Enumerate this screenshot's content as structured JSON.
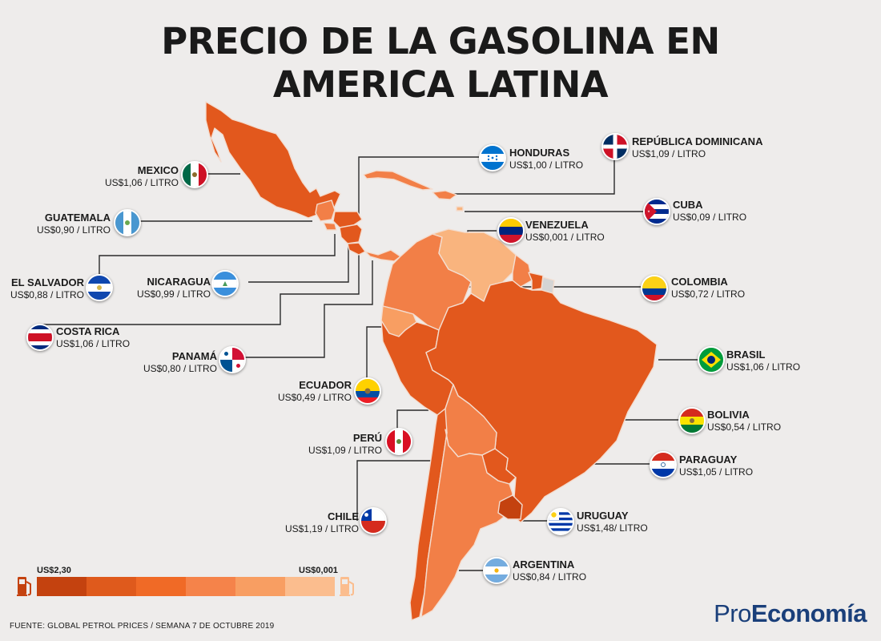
{
  "title_line1": "PRECIO DE LA GASOLINA EN",
  "title_line2": "AMERICA LATINA",
  "countries": {
    "mexico": {
      "name": "MEXICO",
      "price": "US$1,06 / LITRO",
      "value": 1.06
    },
    "guatemala": {
      "name": "GUATEMALA",
      "price": "US$0,90 / LITRO",
      "value": 0.9
    },
    "el_salvador": {
      "name": "EL SALVADOR",
      "price": "US$0,88 / LITRO",
      "value": 0.88
    },
    "nicaragua": {
      "name": "NICARAGUA",
      "price": "US$0,99 / LITRO",
      "value": 0.99
    },
    "costa_rica": {
      "name": "COSTA RICA",
      "price": "US$1,06 / LITRO",
      "value": 1.06
    },
    "panama": {
      "name": "PANAMÁ",
      "price": "US$0,80 / LITRO",
      "value": 0.8
    },
    "ecuador": {
      "name": "ECUADOR",
      "price": "US$0,49 / LITRO",
      "value": 0.49
    },
    "peru": {
      "name": "PERÚ",
      "price": "US$1,09 / LITRO",
      "value": 1.09
    },
    "chile": {
      "name": "CHILE",
      "price": "US$1,19 / LITRO",
      "value": 1.19
    },
    "honduras": {
      "name": "HONDURAS",
      "price": "US$1,00 / LITRO",
      "value": 1.0
    },
    "republica_dominicana": {
      "name": "REPÚBLICA DOMINICANA",
      "price": "US$1,09 / LITRO",
      "value": 1.09
    },
    "cuba": {
      "name": "CUBA",
      "price": "US$0,09 / LITRO",
      "value": 0.09
    },
    "venezuela": {
      "name": "VENEZUELA",
      "price": "US$0,001 / LITRO",
      "value": 0.001
    },
    "colombia": {
      "name": "COLOMBIA",
      "price": "US$0,72 / LITRO",
      "value": 0.72
    },
    "brasil": {
      "name": "BRASIL",
      "price": "US$1,06 / LITRO",
      "value": 1.06
    },
    "bolivia": {
      "name": "BOLIVIA",
      "price": "US$0,54 / LITRO",
      "value": 0.54
    },
    "paraguay": {
      "name": "PARAGUAY",
      "price": "US$1,05 / LITRO",
      "value": 1.05
    },
    "uruguay": {
      "name": "URUGUAY",
      "price": "US$1,48/ LITRO",
      "value": 1.48
    },
    "argentina": {
      "name": "ARGENTINA",
      "price": "US$0,84 / LITRO",
      "value": 0.84
    }
  },
  "legend": {
    "max_label": "US$2,30",
    "min_label": "US$0,001",
    "colors": [
      "#c4420f",
      "#df5a1c",
      "#f06a26",
      "#f5834a",
      "#f89e62",
      "#fbbd8e"
    ]
  },
  "colors": {
    "dark": "#e2581d",
    "mid": "#f27f47",
    "light": "#f9b47e",
    "brand": "#1a3f7a"
  },
  "footer": "FUENTE: GLOBAL PETROL PRICES / SEMANA 7 DE OCTUBRE 2019",
  "brand": {
    "part1": "Pro",
    "part2": "Economía"
  }
}
